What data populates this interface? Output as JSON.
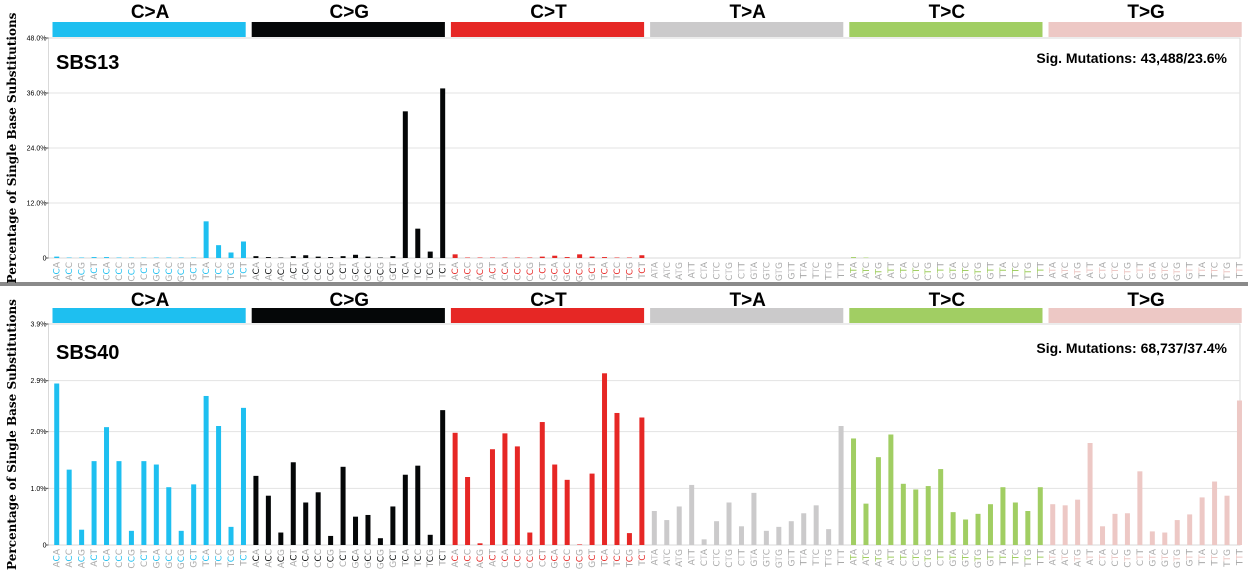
{
  "colors": {
    "C>A": "#1EBFF0",
    "C>G": "#050708",
    "C>T": "#E62725",
    "T>A": "#CBCACB",
    "T>C": "#A1CE63",
    "T>G": "#EDC8C5"
  },
  "mutation_types": [
    "C>A",
    "C>G",
    "C>T",
    "T>A",
    "T>C",
    "T>G"
  ],
  "contexts": {
    "C": [
      "ACA",
      "ACC",
      "ACG",
      "ACT",
      "CCA",
      "CCC",
      "CCG",
      "CCT",
      "GCA",
      "GCC",
      "GCG",
      "GCT",
      "TCA",
      "TCC",
      "TCG",
      "TCT"
    ],
    "T": [
      "ATA",
      "ATC",
      "ATG",
      "ATT",
      "CTA",
      "CTC",
      "CTG",
      "CTT",
      "GTA",
      "GTC",
      "GTG",
      "GTT",
      "TTA",
      "TTC",
      "TTG",
      "TTT"
    ]
  },
  "chart_data": [
    {
      "type": "bar",
      "title": "SBS13",
      "annotation": "Sig. Mutations: 43,488/23.6%",
      "ylabel": "Percentage of Single Base Substitutions",
      "ylim": [
        0,
        48.0
      ],
      "yticks": [
        0,
        12.0,
        24.0,
        36.0,
        48.0
      ],
      "ytick_labels": [
        "0",
        "12.0%",
        "24.0%",
        "36.0%",
        "48.0%"
      ],
      "values": {
        "C>A": [
          0.3,
          0.1,
          0.1,
          0.2,
          0.2,
          0.1,
          0.1,
          0.1,
          0.1,
          0.1,
          0.1,
          0.1,
          8.0,
          2.8,
          1.2,
          3.6
        ],
        "C>G": [
          0.4,
          0.2,
          0.1,
          0.4,
          0.6,
          0.3,
          0.2,
          0.4,
          0.7,
          0.3,
          0.1,
          0.4,
          32.0,
          6.4,
          1.4,
          37.0
        ],
        "C>T": [
          0.8,
          0.1,
          0.1,
          0.1,
          0.1,
          0.1,
          0.1,
          0.3,
          0.5,
          0.2,
          0.8,
          0.3,
          0.2,
          0.1,
          0.1,
          0.6
        ],
        "T>A": [
          0,
          0,
          0,
          0,
          0,
          0,
          0,
          0,
          0,
          0,
          0,
          0,
          0,
          0,
          0,
          0
        ],
        "T>C": [
          0.2,
          0.1,
          0,
          0,
          0,
          0,
          0,
          0,
          0,
          0,
          0,
          0,
          0,
          0,
          0,
          0
        ],
        "T>G": [
          0,
          0,
          0,
          0,
          0,
          0,
          0,
          0,
          0,
          0,
          0,
          0,
          0,
          0,
          0,
          0
        ]
      }
    },
    {
      "type": "bar",
      "title": "SBS40",
      "annotation": "Sig. Mutations: 68,737/37.4%",
      "ylabel": "Percentage of Single Base Substitutions",
      "ylim": [
        0,
        3.9
      ],
      "yticks": [
        0,
        1.0,
        2.0,
        2.9,
        3.9
      ],
      "ytick_labels": [
        "0",
        "1.0%",
        "2.0%",
        "2.9%",
        "3.9%"
      ],
      "values": {
        "C>A": [
          2.85,
          1.33,
          0.27,
          1.48,
          2.08,
          1.48,
          0.25,
          1.48,
          1.42,
          1.02,
          0.25,
          1.07,
          2.63,
          2.1,
          0.32,
          2.42
        ],
        "C>G": [
          1.22,
          0.87,
          0.22,
          1.46,
          0.75,
          0.93,
          0.16,
          1.38,
          0.5,
          0.53,
          0.12,
          0.68,
          1.24,
          1.4,
          0.18,
          2.38
        ],
        "C>T": [
          1.98,
          1.2,
          0.03,
          1.69,
          1.97,
          1.74,
          0.22,
          2.17,
          1.42,
          1.15,
          0.01,
          1.26,
          3.03,
          2.33,
          0.21,
          2.25
        ],
        "T>A": [
          0.6,
          0.44,
          0.68,
          1.06,
          0.1,
          0.42,
          0.75,
          0.33,
          0.92,
          0.25,
          0.32,
          0.42,
          0.56,
          0.7,
          0.28,
          2.1
        ],
        "T>C": [
          1.88,
          0.73,
          1.55,
          1.95,
          1.08,
          0.98,
          1.04,
          1.34,
          0.58,
          0.45,
          0.55,
          0.72,
          1.02,
          0.75,
          0.6,
          1.02
        ],
        "T>G": [
          0.72,
          0.7,
          0.8,
          1.8,
          0.33,
          0.55,
          0.56,
          1.3,
          0.24,
          0.22,
          0.44,
          0.54,
          0.84,
          1.12,
          0.87,
          2.55
        ]
      }
    }
  ]
}
